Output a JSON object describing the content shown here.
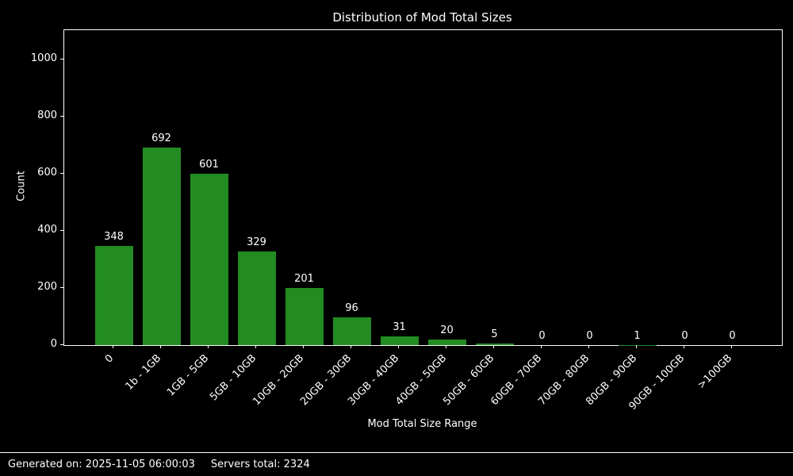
{
  "chart_data": {
    "type": "bar",
    "title": "Distribution of Mod Total Sizes",
    "xlabel": "Mod Total Size Range",
    "ylabel": "Count",
    "categories": [
      "0",
      "1b - 1GB",
      "1GB - 5GB",
      "5GB - 10GB",
      "10GB - 20GB",
      "20GB - 30GB",
      "30GB - 40GB",
      "40GB - 50GB",
      "50GB - 60GB",
      "60GB - 70GB",
      "70GB - 80GB",
      "80GB - 90GB",
      "90GB - 100GB",
      ">100GB"
    ],
    "values": [
      348,
      692,
      601,
      329,
      201,
      96,
      31,
      20,
      5,
      0,
      0,
      1,
      0,
      0
    ],
    "yticks": [
      0,
      200,
      400,
      600,
      800,
      1000
    ],
    "ylim": [
      0,
      1103
    ],
    "grid": false,
    "legend": null,
    "bar_color": "#228B22",
    "background_color": "#000000",
    "text_color": "#ffffff"
  },
  "footer": {
    "generated_label": "Generated on: 2025-11-05 06:00:03",
    "servers_label": "Servers total: 2324"
  }
}
